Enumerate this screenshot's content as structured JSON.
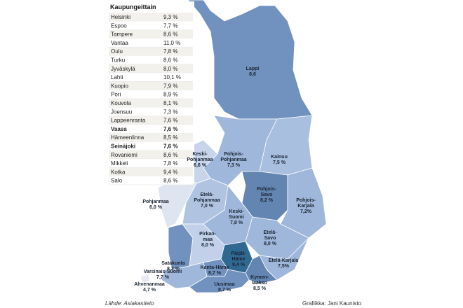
{
  "table": {
    "title": "Kaupungeittain",
    "rows": [
      [
        "Helsinki",
        "9,3 %"
      ],
      [
        "Espoo",
        "7,7 %"
      ],
      [
        "Tampere",
        "8,6 %"
      ],
      [
        "Vantaa",
        "11,0 %"
      ],
      [
        "Oulu",
        "7,8 %"
      ],
      [
        "Turku",
        "8,6 %"
      ],
      [
        "Jyväskylä",
        "8,0 %"
      ],
      [
        "Lahti",
        "10,1 %"
      ],
      [
        "Kuopio",
        "7,9 %"
      ],
      [
        "Pori",
        "8,9 %"
      ],
      [
        "Kouvola",
        "8,1 %"
      ],
      [
        "Joensuu",
        "7,3 %"
      ],
      [
        "Lappeenranta",
        "7,6 %"
      ],
      [
        "Vaasa",
        "7,6 %"
      ],
      [
        "Hämeenlinna",
        "8,5 %"
      ],
      [
        "Seinäjoki",
        "7,6 %"
      ],
      [
        "Rovaniemi",
        "8,6 %"
      ],
      [
        "Mikkeli",
        "7,8 %"
      ],
      [
        "Kotka",
        "9,4 %"
      ],
      [
        "Salo",
        "8,6 %"
      ]
    ]
  },
  "regions": [
    {
      "name": [
        "Lappi"
      ],
      "value": "8,6"
    },
    {
      "name": [
        "Keski-",
        "Pohjanmaa"
      ],
      "value": "6,6 %"
    },
    {
      "name": [
        "Pohjois-",
        "Pohjanmaa"
      ],
      "value": "7,3 %"
    },
    {
      "name": [
        "Kainuu"
      ],
      "value": "7,5 %"
    },
    {
      "name": [
        "Pohjanmaa"
      ],
      "value": "6,0 %"
    },
    {
      "name": [
        "Etelä-",
        "Pohjanmaa"
      ],
      "value": "7,0 %"
    },
    {
      "name": [
        "Pohjois-",
        "Savo"
      ],
      "value": "8,2 %"
    },
    {
      "name": [
        "Pohjois-",
        "Karjala"
      ],
      "value": "7,2%"
    },
    {
      "name": [
        "Keski-",
        "Suomi"
      ],
      "value": "7,8 %"
    },
    {
      "name": [
        "Satakunta"
      ],
      "value": "8,2 %"
    },
    {
      "name": [
        "Pirkan-",
        "maa"
      ],
      "value": "8,0 %"
    },
    {
      "name": [
        "Etelä-",
        "Savo"
      ],
      "value": "8,0 %"
    },
    {
      "name": [
        "Päijät-",
        "Häme"
      ],
      "value": "9,4 %"
    },
    {
      "name": [
        "Kanta-Häme"
      ],
      "value": "8,7 %"
    },
    {
      "name": [
        "Etelä-Karjala"
      ],
      "value": "7,5%"
    },
    {
      "name": [
        "Varsinais-Suomi"
      ],
      "value": "7,7 %"
    },
    {
      "name": [
        "Uusimaa"
      ],
      "value": "8,7 %"
    },
    {
      "name": [
        "Kymen-",
        "laakso"
      ],
      "value": "8,5 %"
    },
    {
      "name": [
        "Ahvenanmaa"
      ],
      "value": "4,7 %"
    }
  ],
  "footer": {
    "source": "Lähde: Asiakastieto",
    "credit": "Grafiikka: Jani Kaunisto"
  }
}
